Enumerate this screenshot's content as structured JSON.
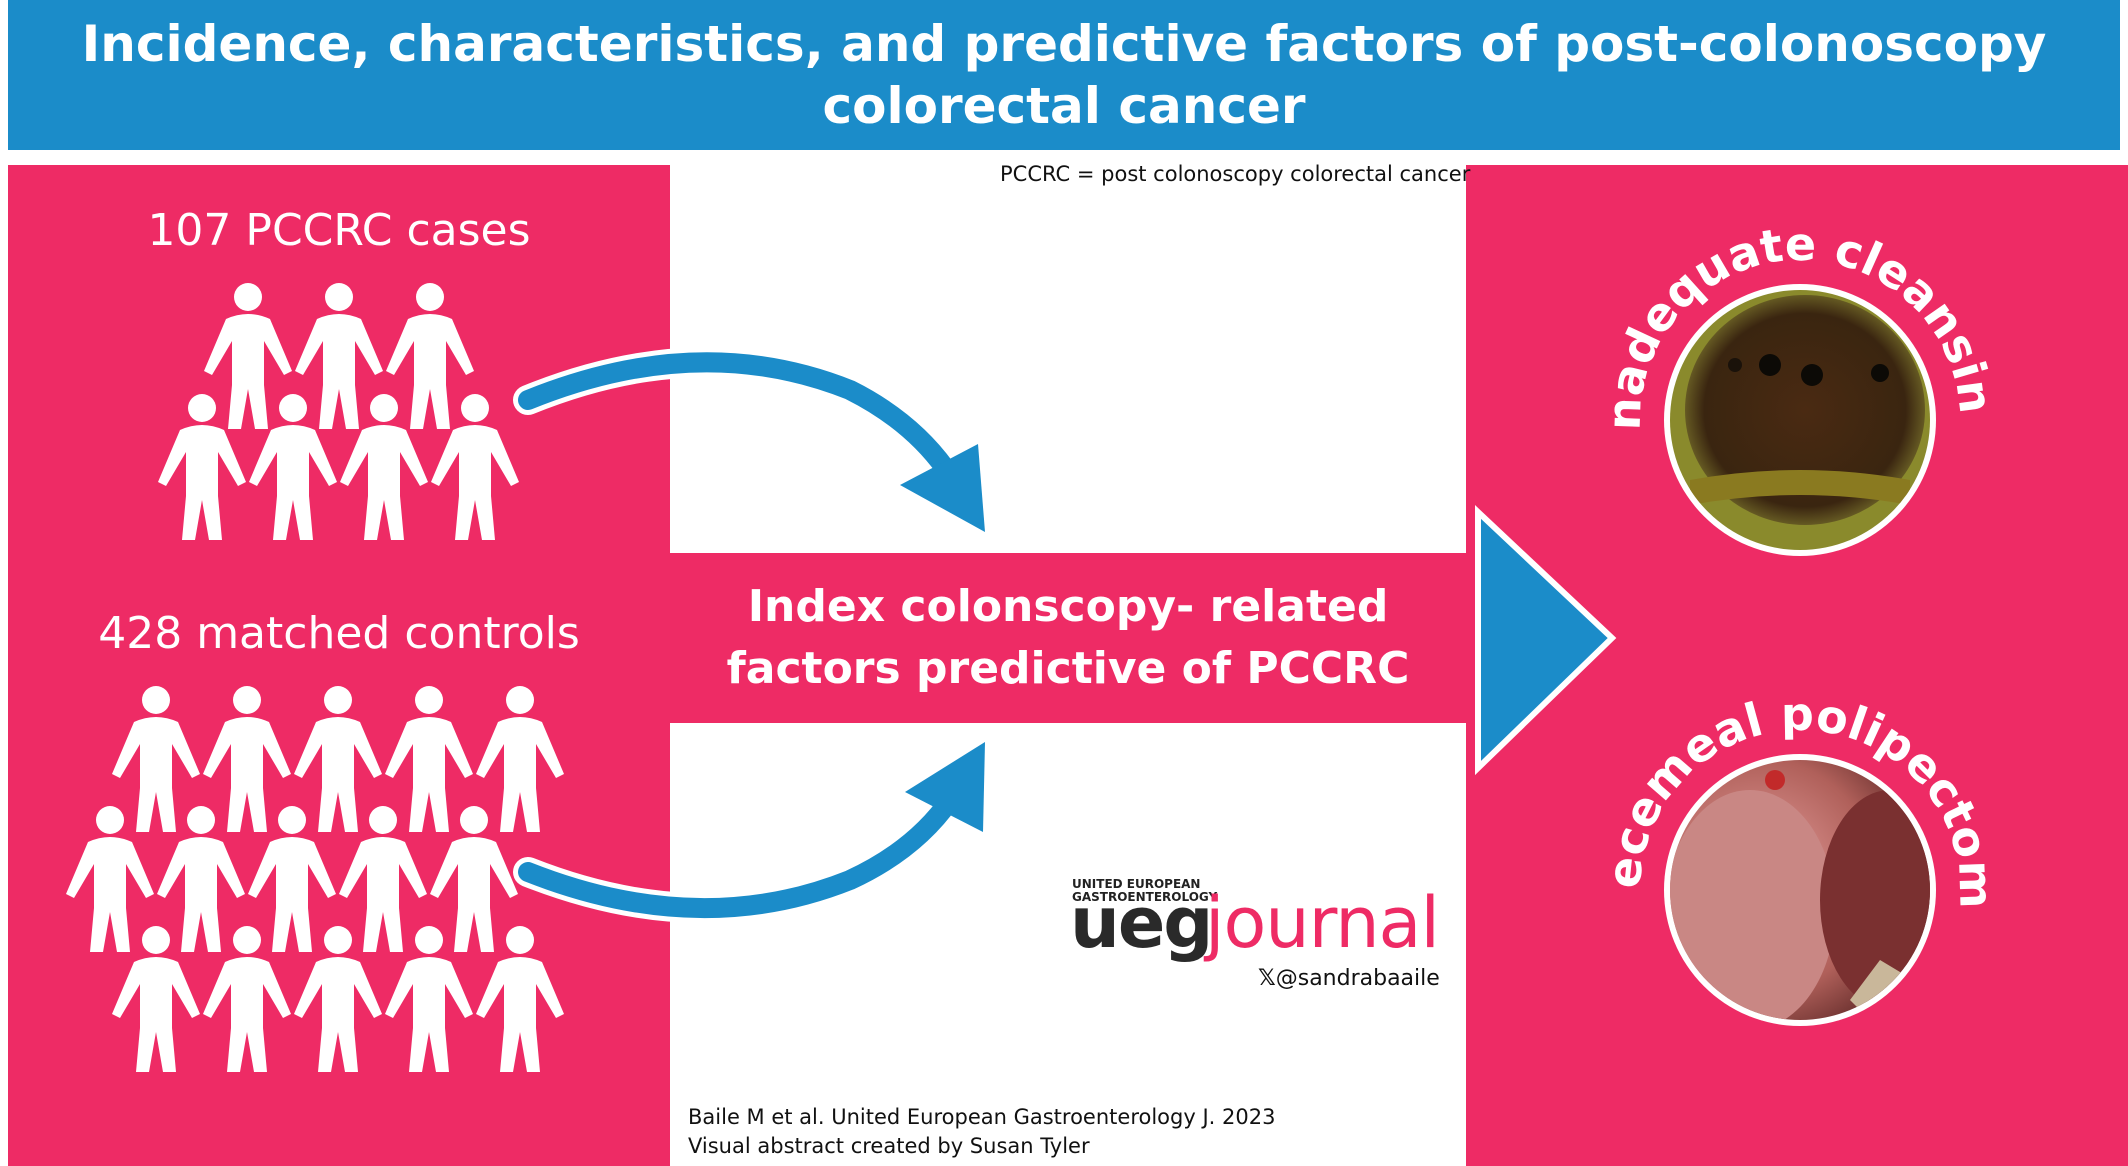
{
  "title": {
    "line1": "Incidence, characteristics, and predictive factors of post-colonoscopy",
    "line2": "colorectal cancer"
  },
  "abbreviation": "PCCRC = post colonoscopy colorectal cancer",
  "groups": {
    "cases": {
      "label": "107 PCCRC cases",
      "icon": "person-icon",
      "figure_count": 7
    },
    "controls": {
      "label": "428 matched controls",
      "icon": "person-icon",
      "figure_count": 15
    }
  },
  "center": {
    "line1": "Index colonscopy- related",
    "line2": "factors predictive of PCCRC"
  },
  "factors": [
    {
      "label": "Inadequate cleansing",
      "image": "endoscopy-photo-inadequate-cleansing"
    },
    {
      "label": "Piecemeal polipectomy",
      "image": "endoscopy-photo-piecemeal-polypectomy"
    }
  ],
  "logo": {
    "small_line1": "UNITED EUROPEAN",
    "small_line2": "GASTROENTEROLOGY",
    "ueg": "ueg",
    "journal": "journal"
  },
  "handle": "@sandrabaaile",
  "handle_icon": "x-logo-icon",
  "citation": {
    "line1": "Baile M et al. United European Gastroenterology J. 2023",
    "line2": "Visual abstract created by Susan Tyler"
  },
  "colors": {
    "header_blue": "#1b8cc9",
    "panel_pink": "#ee2b65",
    "arrow_blue": "#1b8cc9"
  }
}
